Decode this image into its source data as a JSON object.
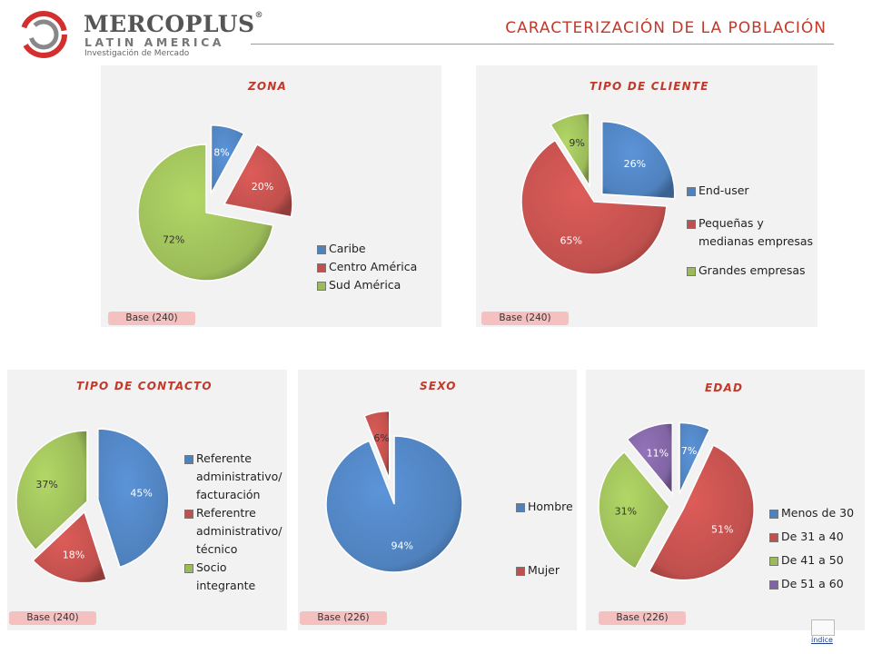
{
  "header": {
    "brand_name": "MERCOPLUS",
    "brand_reg": "®",
    "brand_sub": "LATIN AMERICA",
    "brand_tagline": "Investigación de Mercado",
    "page_title": "CARACTERIZACIÓN DE LA POBLACIÓN"
  },
  "colors": {
    "blue": "#4f81bd",
    "red": "#c0504d",
    "green": "#9bbb59",
    "purple": "#8064a2",
    "accent": "#c0392b",
    "base_badge": "#f4c0c0"
  },
  "footer": {
    "index_link": "índice"
  },
  "chart_data": [
    {
      "id": "zona",
      "type": "pie",
      "title": "ZONA",
      "categories": [
        "Caribe",
        "Centro América",
        "Sud América"
      ],
      "values": [
        8,
        20,
        72
      ],
      "value_labels": [
        "8%",
        "20%",
        "72%"
      ],
      "legend_placement": "bottom-right",
      "base": "Base (240)"
    },
    {
      "id": "cliente",
      "type": "pie",
      "title": "TIPO DE CLIENTE",
      "categories": [
        "End-user",
        "Pequeñas y medianas empresas",
        "Grandes empresas"
      ],
      "legend_lines": [
        [
          "End-user"
        ],
        [
          "Pequeñas y",
          "medianas empresas"
        ],
        [
          "Grandes empresas"
        ]
      ],
      "values": [
        26,
        65,
        9
      ],
      "value_labels": [
        "26%",
        "65%",
        "9%"
      ],
      "legend_placement": "right",
      "base": "Base (240)"
    },
    {
      "id": "contacto",
      "type": "pie",
      "title": "TIPO DE CONTACTO",
      "categories": [
        "Referente administrativo/ facturación",
        "Referentre administrativo/ técnico",
        "Socio integrante"
      ],
      "legend_lines": [
        [
          "Referente",
          "administrativo/",
          "facturación"
        ],
        [
          "Referentre",
          "administrativo/",
          "técnico"
        ],
        [
          "Socio",
          "integrante"
        ]
      ],
      "values": [
        45,
        18,
        37
      ],
      "value_labels": [
        "45%",
        "18%",
        "37%"
      ],
      "legend_placement": "right",
      "base": "Base (240)"
    },
    {
      "id": "sexo",
      "type": "pie",
      "title": "SEXO",
      "categories": [
        "Hombre",
        "Mujer"
      ],
      "values": [
        94,
        6
      ],
      "value_labels": [
        "94%",
        "6%"
      ],
      "legend_placement": "right",
      "base": "Base (226)"
    },
    {
      "id": "edad",
      "type": "pie",
      "title": "EDAD",
      "categories": [
        "Menos de 30",
        "De 31 a 40",
        "De 41 a 50",
        "De 51 a 60"
      ],
      "values": [
        7,
        51,
        31,
        11
      ],
      "value_labels": [
        "7%",
        "51%",
        "31%",
        "11%"
      ],
      "legend_placement": "right",
      "base": "Base (226)"
    }
  ]
}
